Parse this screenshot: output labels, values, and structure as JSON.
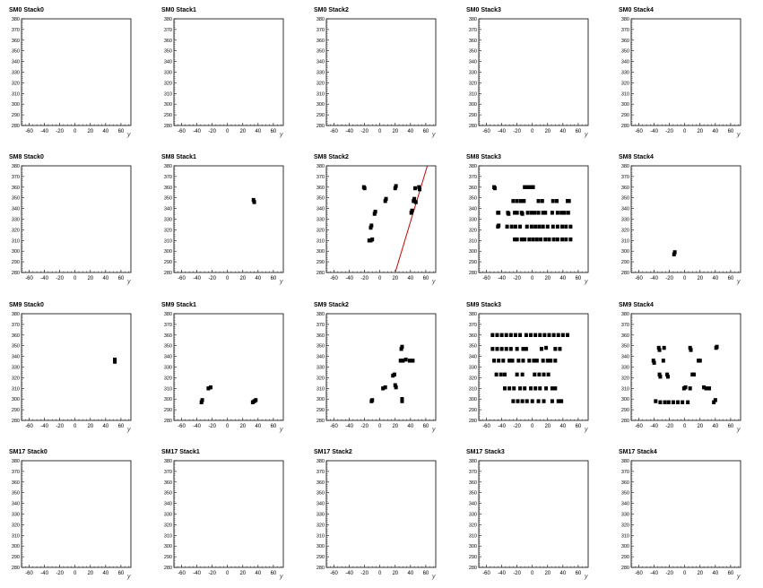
{
  "chart_data": {
    "type": "scatter",
    "layout": {
      "rows": 4,
      "cols": 5
    },
    "axes": {
      "xlim": [
        -70,
        73
      ],
      "ylim": [
        280,
        380
      ],
      "xlabel": "y",
      "xticks": [
        -60,
        -40,
        -20,
        0,
        20,
        40,
        60
      ],
      "yticks": [
        280,
        290,
        300,
        310,
        320,
        330,
        340,
        350,
        360,
        370,
        380
      ],
      "grid": false
    },
    "colors": {
      "points": "#000000",
      "line": "#cc0000",
      "frame": "#000000"
    },
    "panels": [
      {
        "title": "SM0 Stack0",
        "points": []
      },
      {
        "title": "SM0 Stack1",
        "points": []
      },
      {
        "title": "SM0 Stack2",
        "points": []
      },
      {
        "title": "SM0 Stack3",
        "points": []
      },
      {
        "title": "SM0 Stack4",
        "points": []
      },
      {
        "title": "SM8 Stack0",
        "points": []
      },
      {
        "title": "SM8 Stack1",
        "points": [
          [
            34,
            348
          ],
          [
            35,
            346
          ]
        ]
      },
      {
        "title": "SM8 Stack2",
        "points": [
          [
            -21,
            360
          ],
          [
            -20,
            359
          ],
          [
            -14,
            310
          ],
          [
            -12,
            310
          ],
          [
            -10,
            311
          ],
          [
            -12,
            322
          ],
          [
            -11,
            324
          ],
          [
            -7,
            335
          ],
          [
            -6,
            337
          ],
          [
            7,
            347
          ],
          [
            8,
            349
          ],
          [
            20,
            359
          ],
          [
            21,
            361
          ],
          [
            41,
            336
          ],
          [
            42,
            338
          ],
          [
            44,
            347
          ],
          [
            45,
            349
          ],
          [
            47,
            346
          ],
          [
            46,
            359
          ],
          [
            51,
            360
          ],
          [
            52,
            358
          ]
        ],
        "line": [
          [
            20,
            280
          ],
          [
            62,
            380
          ]
        ]
      },
      {
        "title": "SM8 Stack3",
        "points": [
          [
            -50,
            360
          ],
          [
            -49,
            359
          ],
          [
            -25,
            347
          ],
          [
            -20,
            347
          ],
          [
            -15,
            347
          ],
          [
            -11,
            347
          ],
          [
            -45,
            336
          ],
          [
            -44,
            336
          ],
          [
            -32,
            336
          ],
          [
            -31,
            335
          ],
          [
            -23,
            336
          ],
          [
            -20,
            336
          ],
          [
            -14,
            336
          ],
          [
            -13,
            335
          ],
          [
            -6,
            336
          ],
          [
            -1,
            336
          ],
          [
            3,
            336
          ],
          [
            8,
            336
          ],
          [
            14,
            336
          ],
          [
            17,
            336
          ],
          [
            26,
            336
          ],
          [
            33,
            336
          ],
          [
            38,
            336
          ],
          [
            42,
            336
          ],
          [
            47,
            336
          ],
          [
            -45,
            323
          ],
          [
            -44,
            324
          ],
          [
            -33,
            323
          ],
          [
            -27,
            323
          ],
          [
            -22,
            323
          ],
          [
            -16,
            323
          ],
          [
            -7,
            323
          ],
          [
            -1,
            323
          ],
          [
            4,
            323
          ],
          [
            9,
            323
          ],
          [
            14,
            323
          ],
          [
            20,
            323
          ],
          [
            27,
            323
          ],
          [
            33,
            323
          ],
          [
            39,
            323
          ],
          [
            44,
            323
          ],
          [
            50,
            323
          ],
          [
            -23,
            311
          ],
          [
            -20,
            311
          ],
          [
            -14,
            311
          ],
          [
            -10,
            311
          ],
          [
            -4,
            311
          ],
          [
            1,
            311
          ],
          [
            6,
            311
          ],
          [
            11,
            311
          ],
          [
            17,
            311
          ],
          [
            22,
            311
          ],
          [
            28,
            311
          ],
          [
            33,
            311
          ],
          [
            39,
            311
          ],
          [
            44,
            311
          ],
          [
            50,
            311
          ],
          [
            -10,
            360
          ],
          [
            -6,
            360
          ],
          [
            -2,
            360
          ],
          [
            1,
            360
          ],
          [
            8,
            347
          ],
          [
            13,
            347
          ],
          [
            27,
            347
          ],
          [
            32,
            347
          ],
          [
            46,
            347
          ],
          [
            48,
            347
          ]
        ]
      },
      {
        "title": "SM8 Stack4",
        "points": [
          [
            -14,
            297
          ],
          [
            -13,
            299
          ]
        ]
      },
      {
        "title": "SM9 Stack0",
        "points": [
          [
            52,
            335
          ],
          [
            52,
            337
          ]
        ]
      },
      {
        "title": "SM9 Stack1",
        "points": [
          [
            -34,
            297
          ],
          [
            -33,
            299
          ],
          [
            -25,
            310
          ],
          [
            -22,
            311
          ],
          [
            33,
            297
          ],
          [
            35,
            298
          ],
          [
            37,
            299
          ]
        ]
      },
      {
        "title": "SM9 Stack2",
        "points": [
          [
            -11,
            298
          ],
          [
            -10,
            299
          ],
          [
            4,
            310
          ],
          [
            7,
            311
          ],
          [
            17,
            322
          ],
          [
            19,
            323
          ],
          [
            20,
            313
          ],
          [
            21,
            311
          ],
          [
            27,
            336
          ],
          [
            30,
            336
          ],
          [
            34,
            337
          ],
          [
            39,
            336
          ],
          [
            43,
            336
          ],
          [
            28,
            347
          ],
          [
            29,
            349
          ],
          [
            29,
            298
          ],
          [
            29,
            300
          ]
        ]
      },
      {
        "title": "SM9 Stack3",
        "points": [
          [
            -52,
            360
          ],
          [
            -46,
            360
          ],
          [
            -40,
            360
          ],
          [
            -34,
            360
          ],
          [
            -28,
            360
          ],
          [
            -22,
            360
          ],
          [
            -16,
            360
          ],
          [
            -8,
            360
          ],
          [
            -2,
            360
          ],
          [
            4,
            360
          ],
          [
            10,
            360
          ],
          [
            16,
            360
          ],
          [
            22,
            360
          ],
          [
            28,
            360
          ],
          [
            34,
            360
          ],
          [
            40,
            360
          ],
          [
            46,
            360
          ],
          [
            -52,
            347
          ],
          [
            -46,
            347
          ],
          [
            -40,
            347
          ],
          [
            -34,
            347
          ],
          [
            -28,
            347
          ],
          [
            -20,
            347
          ],
          [
            -12,
            347
          ],
          [
            -8,
            347
          ],
          [
            12,
            347
          ],
          [
            18,
            348
          ],
          [
            30,
            347
          ],
          [
            36,
            347
          ],
          [
            -50,
            336
          ],
          [
            -44,
            336
          ],
          [
            -38,
            336
          ],
          [
            -30,
            336
          ],
          [
            -26,
            336
          ],
          [
            -18,
            336
          ],
          [
            -12,
            336
          ],
          [
            -4,
            336
          ],
          [
            2,
            336
          ],
          [
            6,
            336
          ],
          [
            14,
            336
          ],
          [
            20,
            336
          ],
          [
            24,
            336
          ],
          [
            30,
            336
          ],
          [
            -47,
            323
          ],
          [
            -41,
            323
          ],
          [
            -36,
            323
          ],
          [
            -20,
            323
          ],
          [
            -13,
            323
          ],
          [
            3,
            323
          ],
          [
            9,
            323
          ],
          [
            15,
            323
          ],
          [
            21,
            323
          ],
          [
            -36,
            310
          ],
          [
            -30,
            310
          ],
          [
            -24,
            310
          ],
          [
            -16,
            310
          ],
          [
            -10,
            310
          ],
          [
            -2,
            310
          ],
          [
            4,
            310
          ],
          [
            10,
            310
          ],
          [
            18,
            310
          ],
          [
            26,
            310
          ],
          [
            30,
            310
          ],
          [
            -25,
            298
          ],
          [
            -19,
            298
          ],
          [
            -13,
            298
          ],
          [
            -7,
            298
          ],
          [
            0,
            298
          ],
          [
            8,
            298
          ],
          [
            15,
            298
          ],
          [
            26,
            298
          ],
          [
            34,
            298
          ],
          [
            38,
            298
          ]
        ]
      },
      {
        "title": "SM9 Stack4",
        "points": [
          [
            -41,
            336
          ],
          [
            -40,
            334
          ],
          [
            -34,
            348
          ],
          [
            -33,
            346
          ],
          [
            -27,
            348
          ],
          [
            -28,
            336
          ],
          [
            -33,
            323
          ],
          [
            -32,
            321
          ],
          [
            -23,
            323
          ],
          [
            -22,
            321
          ],
          [
            -38,
            298
          ],
          [
            -32,
            297
          ],
          [
            -26,
            297
          ],
          [
            -21,
            297
          ],
          [
            -15,
            297
          ],
          [
            -9,
            297
          ],
          [
            -3,
            297
          ],
          [
            -1,
            310
          ],
          [
            1,
            311
          ],
          [
            4,
            297
          ],
          [
            7,
            348
          ],
          [
            8,
            346
          ],
          [
            10,
            323
          ],
          [
            12,
            323
          ],
          [
            7,
            310
          ],
          [
            18,
            336
          ],
          [
            20,
            336
          ],
          [
            25,
            311
          ],
          [
            28,
            310
          ],
          [
            32,
            310
          ],
          [
            38,
            297
          ],
          [
            40,
            299
          ],
          [
            41,
            348
          ],
          [
            42,
            349
          ]
        ]
      },
      {
        "title": "SM17 Stack0",
        "points": []
      },
      {
        "title": "SM17 Stack1",
        "points": []
      },
      {
        "title": "SM17 Stack2",
        "points": []
      },
      {
        "title": "SM17 Stack3",
        "points": []
      },
      {
        "title": "SM17 Stack4",
        "points": []
      }
    ]
  }
}
